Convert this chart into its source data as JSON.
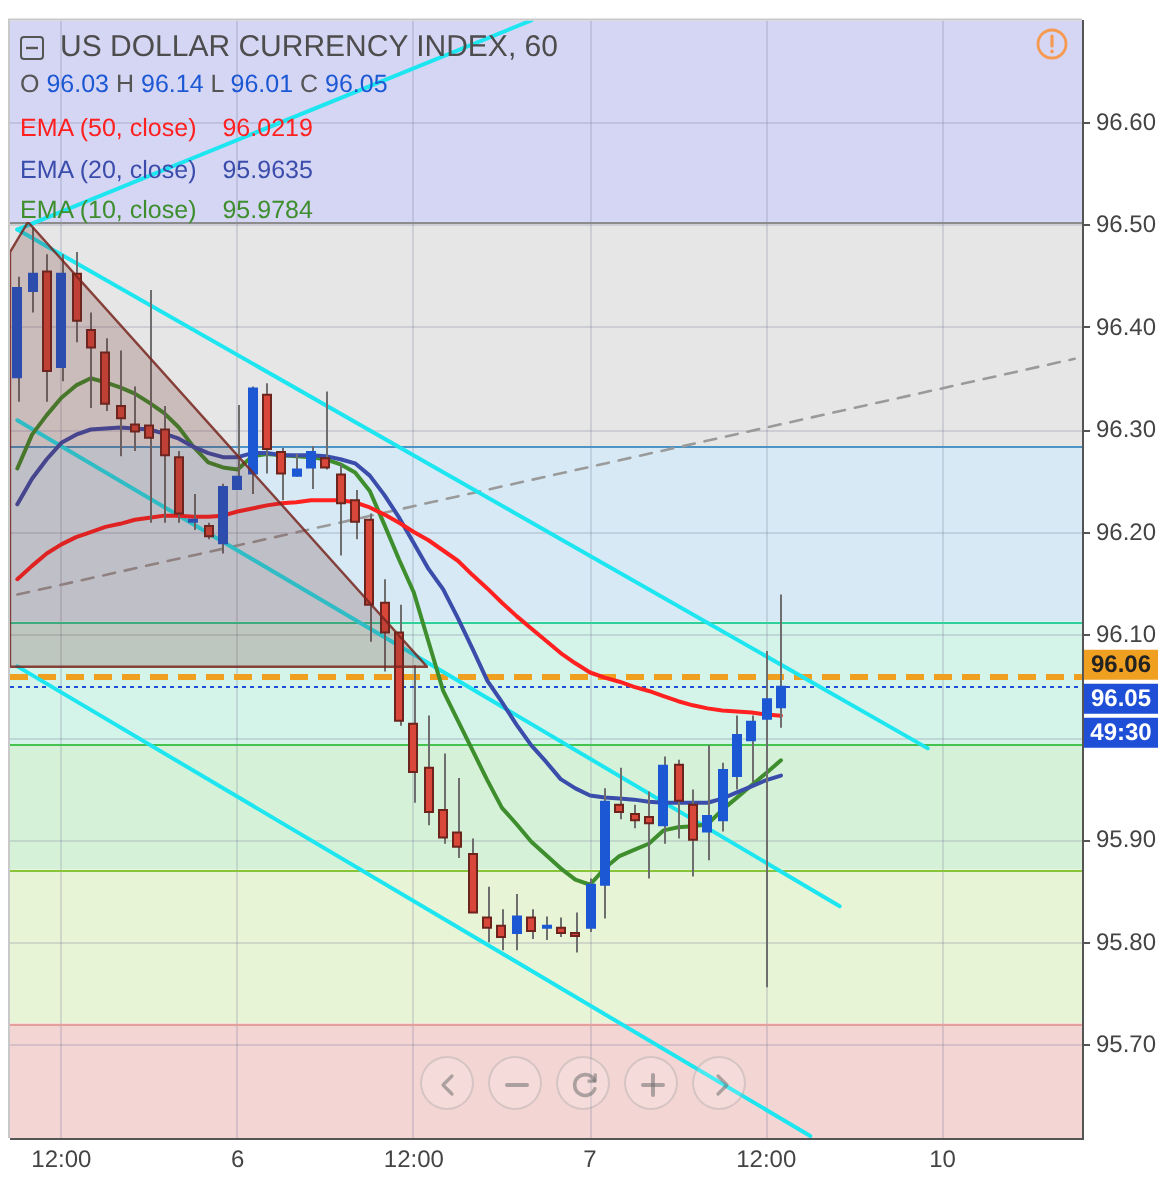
{
  "chart_data": {
    "type": "candlestick",
    "title": "US DOLLAR CURRENCY INDEX, 60",
    "subtitle": "O 96.03 H 96.14 L 96.01 C 96.05",
    "categories": [
      null,
      null,
      null,
      "12:00",
      null,
      null,
      null,
      null,
      null,
      null,
      null,
      null,
      null,
      null,
      null,
      "6",
      null,
      null,
      null,
      null,
      null,
      null,
      null,
      null,
      null,
      null,
      null,
      "12:00",
      null,
      null,
      null,
      null,
      null,
      null,
      null,
      null,
      null,
      null,
      null,
      "7",
      null,
      null,
      null,
      null,
      null,
      null,
      null,
      null,
      null,
      null,
      null,
      "12:00",
      null,
      null,
      null,
      null,
      null,
      null,
      null,
      null,
      null,
      null,
      null,
      "10",
      null,
      null,
      null,
      null,
      null,
      null,
      null,
      null,
      null
    ],
    "ohlc": [
      [
        96.352,
        96.45,
        96.328,
        96.439
      ],
      [
        96.436,
        96.498,
        96.415,
        96.453
      ],
      [
        96.455,
        96.472,
        96.328,
        96.358
      ],
      [
        96.362,
        96.472,
        96.348,
        96.453
      ],
      [
        96.453,
        96.474,
        96.386,
        96.407
      ],
      [
        96.398,
        96.415,
        96.322,
        96.381
      ],
      [
        96.376,
        96.39,
        96.319,
        96.326
      ],
      [
        96.324,
        96.378,
        96.275,
        96.312
      ],
      [
        96.306,
        96.343,
        96.28,
        96.299
      ],
      [
        96.305,
        96.437,
        96.21,
        96.293
      ],
      [
        96.301,
        96.324,
        96.21,
        96.276
      ],
      [
        96.274,
        96.28,
        96.21,
        96.219
      ],
      [
        96.213,
        96.238,
        96.203,
        96.213
      ],
      [
        96.207,
        96.21,
        96.194,
        96.197
      ],
      [
        96.19,
        96.248,
        96.18,
        96.245
      ],
      [
        96.243,
        96.325,
        96.242,
        96.255
      ],
      [
        96.258,
        96.343,
        96.238,
        96.341
      ],
      [
        96.335,
        96.346,
        96.258,
        96.282
      ],
      [
        96.279,
        96.283,
        96.232,
        96.258
      ],
      [
        96.256,
        96.277,
        96.255,
        96.262
      ],
      [
        96.264,
        96.285,
        96.243,
        96.279
      ],
      [
        96.273,
        96.338,
        96.262,
        96.264
      ],
      [
        96.257,
        96.267,
        96.178,
        96.229
      ],
      [
        96.232,
        96.242,
        96.194,
        96.211
      ],
      [
        96.213,
        96.219,
        96.094,
        96.13
      ],
      [
        96.132,
        96.155,
        96.065,
        96.103
      ],
      [
        96.103,
        96.13,
        96.012,
        96.017
      ],
      [
        96.014,
        96.071,
        95.937,
        95.967
      ],
      [
        95.971,
        96.022,
        95.915,
        95.928
      ],
      [
        95.93,
        95.985,
        95.897,
        95.903
      ],
      [
        95.908,
        95.961,
        95.883,
        95.894
      ],
      [
        95.887,
        95.902,
        95.83,
        95.83
      ],
      [
        95.825,
        95.855,
        95.801,
        95.815
      ],
      [
        95.817,
        95.833,
        95.793,
        95.806
      ],
      [
        95.81,
        95.848,
        95.793,
        95.826
      ],
      [
        95.825,
        95.833,
        95.804,
        95.812
      ],
      [
        95.816,
        95.826,
        95.803,
        95.817
      ],
      [
        95.815,
        95.825,
        95.806,
        95.81
      ],
      [
        95.81,
        95.83,
        95.791,
        95.807
      ],
      [
        95.815,
        95.863,
        95.811,
        95.857
      ],
      [
        95.857,
        95.951,
        95.824,
        95.938
      ],
      [
        95.935,
        95.971,
        95.921,
        95.928
      ],
      [
        95.926,
        95.935,
        95.912,
        95.92
      ],
      [
        95.923,
        95.948,
        95.863,
        95.917
      ],
      [
        95.915,
        95.982,
        95.897,
        95.973
      ],
      [
        95.974,
        95.979,
        95.902,
        95.939
      ],
      [
        95.935,
        95.95,
        95.865,
        95.901
      ],
      [
        95.909,
        95.993,
        95.881,
        95.924
      ],
      [
        95.92,
        95.976,
        95.909,
        95.969
      ],
      [
        95.963,
        96.022,
        95.95,
        96.003
      ],
      [
        95.998,
        96.022,
        95.957,
        96.016
      ],
      [
        96.019,
        96.085,
        95.757,
        96.038
      ],
      [
        96.03,
        96.14,
        96.01,
        96.05
      ],
      null,
      null,
      null,
      null,
      null,
      null,
      null,
      null,
      null,
      null,
      null,
      null,
      null,
      null,
      null,
      null,
      null,
      null,
      null,
      null
    ],
    "colors": [
      "#1c58d4",
      "#1c58d4",
      "#d8473a",
      "#1c58d4",
      "#d8473a",
      "#d8473a",
      "#d8473a",
      "#d8473a",
      "#d8473a",
      "#d8473a",
      "#d8473a",
      "#d8473a",
      "#1c58d4",
      "#d8473a",
      "#1c58d4",
      "#1c58d4",
      "#1c58d4",
      "#d8473a",
      "#d8473a",
      "#1c58d4",
      "#1c58d4",
      "#d8473a",
      "#d8473a",
      "#d8473a",
      "#d8473a",
      "#d8473a",
      "#d8473a",
      "#d8473a",
      "#d8473a",
      "#d8473a",
      "#d8473a",
      "#d8473a",
      "#d8473a",
      "#d8473a",
      "#1c58d4",
      "#d8473a",
      "#1c58d4",
      "#d8473a",
      "#d8473a",
      "#1c58d4",
      "#1c58d4",
      "#d8473a",
      "#d8473a",
      "#d8473a",
      "#1c58d4",
      "#d8473a",
      "#d8473a",
      "#1c58d4",
      "#1c58d4",
      "#1c58d4",
      "#1c58d4",
      "#1c58d4",
      "#1c58d4",
      null,
      null,
      null,
      null,
      null,
      null,
      null,
      null,
      null,
      null,
      null,
      null,
      null,
      null,
      null,
      null,
      null,
      null,
      null,
      null
    ],
    "series": [
      {
        "type": "line",
        "name": "EMA (50, close)",
        "color": "#ff2020",
        "values": [
          96.155,
          96.168,
          96.18,
          96.189,
          96.196,
          96.201,
          96.206,
          96.209,
          96.213,
          96.215,
          96.217,
          96.217,
          96.216,
          96.216,
          96.217,
          96.221,
          96.224,
          96.227,
          96.229,
          96.23,
          96.232,
          96.232,
          96.232,
          96.23,
          96.225,
          96.218,
          96.21,
          96.201,
          96.193,
          96.183,
          96.173,
          96.159,
          96.146,
          96.132,
          96.119,
          96.107,
          96.095,
          96.083,
          96.073,
          96.064,
          96.059,
          96.055,
          96.05,
          96.046,
          96.041,
          96.036,
          96.032,
          96.029,
          96.027,
          96.026,
          96.025,
          96.023,
          96.0219,
          null,
          null,
          null,
          null,
          null,
          null,
          null,
          null,
          null,
          null,
          null,
          null,
          null,
          null,
          null,
          null,
          null,
          null,
          null,
          null
        ]
      },
      {
        "type": "line",
        "name": "EMA (20, close)",
        "color": "#3b4dab",
        "values": [
          96.228,
          96.253,
          96.272,
          96.288,
          96.296,
          96.301,
          96.302,
          96.303,
          96.302,
          96.301,
          96.297,
          96.292,
          96.284,
          96.278,
          96.274,
          96.274,
          96.278,
          96.278,
          96.276,
          96.276,
          96.276,
          96.275,
          96.272,
          96.268,
          96.256,
          96.237,
          96.215,
          96.19,
          96.165,
          96.145,
          96.117,
          96.087,
          96.056,
          96.035,
          96.013,
          95.993,
          95.977,
          95.96,
          95.951,
          95.944,
          95.942,
          95.941,
          95.94,
          95.938,
          95.937,
          95.937,
          95.937,
          95.937,
          95.941,
          95.947,
          95.953,
          95.959,
          95.9635,
          null,
          null,
          null,
          null,
          null,
          null,
          null,
          null,
          null,
          null,
          null,
          null,
          null,
          null,
          null,
          null,
          null,
          null,
          null,
          null
        ]
      },
      {
        "type": "line",
        "name": "EMA (10, close)",
        "color": "#3e8e2e",
        "values": [
          96.263,
          96.296,
          96.315,
          96.332,
          96.344,
          96.351,
          96.347,
          96.342,
          96.336,
          96.327,
          96.317,
          96.303,
          96.284,
          96.269,
          96.264,
          96.262,
          96.275,
          96.277,
          96.276,
          96.275,
          96.274,
          96.272,
          96.267,
          96.259,
          96.241,
          96.208,
          96.174,
          96.142,
          96.094,
          96.046,
          96.017,
          95.988,
          95.959,
          95.932,
          95.916,
          95.899,
          95.886,
          95.873,
          95.862,
          95.857,
          95.873,
          95.885,
          95.891,
          95.897,
          95.91,
          95.913,
          95.914,
          95.916,
          95.93,
          95.942,
          95.954,
          95.966,
          95.9784,
          null,
          null,
          null,
          null,
          null,
          null,
          null,
          null,
          null,
          null,
          null,
          null,
          null,
          null,
          null,
          null,
          null,
          null,
          null,
          null
        ]
      },
      {
        "type": "line",
        "color": "#1ee6f0",
        "values": [
          96.496,
          null,
          null,
          null,
          null,
          null,
          null,
          null,
          null,
          null,
          null,
          null,
          null,
          null,
          null,
          null,
          null,
          null,
          null,
          null,
          null,
          null,
          null,
          null,
          null,
          null,
          null,
          null,
          null,
          null,
          null,
          null,
          null,
          null,
          null,
          96.7,
          null,
          null,
          null,
          null,
          null,
          null,
          null,
          null,
          null,
          null,
          null,
          null,
          null,
          null,
          null,
          null,
          null,
          null,
          null,
          null,
          null,
          null,
          null,
          null,
          null,
          null,
          null,
          null,
          null,
          null,
          null,
          null,
          null,
          null,
          null,
          null,
          null
        ]
      },
      {
        "type": "line",
        "color": "#1ee6f0",
        "values": [
          96.496,
          null,
          null,
          null,
          null,
          null,
          null,
          null,
          null,
          null,
          null,
          null,
          null,
          null,
          null,
          null,
          null,
          null,
          null,
          null,
          null,
          null,
          null,
          null,
          null,
          null,
          null,
          null,
          null,
          null,
          null,
          null,
          null,
          null,
          null,
          null,
          null,
          null,
          null,
          null,
          null,
          null,
          null,
          null,
          null,
          null,
          null,
          null,
          null,
          null,
          null,
          null,
          null,
          null,
          null,
          null,
          null,
          null,
          null,
          null,
          null,
          null,
          95.99,
          null,
          null,
          null,
          null,
          null,
          null,
          null,
          null,
          null,
          null
        ]
      },
      {
        "type": "line",
        "color": "#1ee6f0",
        "values": [
          96.31,
          null,
          null,
          null,
          null,
          null,
          null,
          null,
          null,
          null,
          null,
          null,
          null,
          null,
          null,
          null,
          null,
          null,
          null,
          null,
          null,
          null,
          null,
          null,
          null,
          null,
          null,
          null,
          null,
          null,
          null,
          null,
          null,
          null,
          null,
          null,
          null,
          null,
          null,
          null,
          null,
          null,
          null,
          null,
          null,
          null,
          null,
          null,
          null,
          null,
          null,
          null,
          null,
          null,
          null,
          null,
          95.836,
          null,
          null,
          null,
          null,
          null,
          null,
          null,
          null,
          null,
          null,
          null,
          null,
          null,
          null,
          null,
          null
        ]
      },
      {
        "type": "line",
        "color": "#1ee6f0",
        "values": [
          96.07,
          null,
          null,
          null,
          null,
          null,
          null,
          null,
          null,
          null,
          null,
          null,
          null,
          null,
          null,
          null,
          null,
          null,
          null,
          null,
          null,
          null,
          null,
          null,
          null,
          null,
          null,
          null,
          null,
          null,
          null,
          null,
          null,
          null,
          null,
          null,
          null,
          null,
          null,
          null,
          null,
          null,
          null,
          null,
          null,
          null,
          null,
          null,
          null,
          null,
          null,
          null,
          null,
          null,
          95.612,
          null,
          null,
          null,
          null,
          null,
          null,
          null,
          null,
          null,
          null,
          null,
          null,
          null,
          null,
          null,
          null,
          null,
          null
        ]
      },
      {
        "type": "line",
        "color": "#9a9a9a",
        "line_style": "dashed",
        "values": [
          96.14,
          null,
          null,
          null,
          null,
          null,
          null,
          null,
          null,
          null,
          null,
          null,
          null,
          null,
          null,
          null,
          null,
          null,
          null,
          null,
          null,
          null,
          null,
          null,
          null,
          null,
          null,
          null,
          null,
          null,
          null,
          null,
          null,
          null,
          null,
          null,
          null,
          null,
          null,
          null,
          null,
          null,
          null,
          null,
          null,
          null,
          null,
          null,
          null,
          null,
          null,
          null,
          null,
          null,
          null,
          null,
          null,
          null,
          null,
          null,
          null,
          null,
          null,
          null,
          null,
          null,
          null,
          null,
          null,
          null,
          null,
          null,
          96.37
        ]
      }
    ],
    "bands": [
      {
        "axis": "y",
        "from": 96.503,
        "to": 96.7,
        "color": "#d5d5f4"
      },
      {
        "axis": "y",
        "from": 96.285,
        "to": 96.503,
        "color": "#e6e6e6"
      },
      {
        "axis": "y",
        "from": 96.114,
        "to": 96.285,
        "color": "#d6e9f4"
      },
      {
        "axis": "y",
        "from": 95.994,
        "to": 96.114,
        "color": "#d4f4ea"
      },
      {
        "axis": "y",
        "from": 95.872,
        "to": 95.994,
        "color": "#d5f2d8"
      },
      {
        "axis": "y",
        "from": 95.722,
        "to": 95.872,
        "color": "#e8f4d6"
      },
      {
        "axis": "y",
        "from": 95.61,
        "to": 95.722,
        "color": "#f3d5d3"
      }
    ],
    "ref_lines": [
      {
        "axis": "y",
        "value": 96.503,
        "color": "#8c8c8c"
      },
      {
        "axis": "y",
        "value": 96.285,
        "color": "#4d94c4"
      },
      {
        "axis": "y",
        "value": 96.114,
        "color": "#2fd09c"
      },
      {
        "axis": "y",
        "value": 95.994,
        "color": "#45c24f"
      },
      {
        "axis": "y",
        "value": 95.872,
        "color": "#86c43a"
      },
      {
        "axis": "y",
        "value": 95.722,
        "color": "#e3a09c"
      },
      {
        "axis": "y",
        "value": 96.06,
        "label": "96.06",
        "color": "#f0a020",
        "line_style": "dashed"
      },
      {
        "axis": "y",
        "value": 96.05,
        "label": "96.05",
        "color": "#1e4fd6",
        "line_style": "dotted"
      }
    ],
    "annotations": [
      "96.0219",
      "95.9635",
      "95.9784",
      "49:30"
    ],
    "ylim": [
      95.61,
      96.7
    ],
    "yticks": [
      {
        "value": 95.7,
        "label": "95.70"
      },
      {
        "value": 95.8,
        "label": "95.80"
      },
      {
        "value": 95.9,
        "label": "95.90"
      },
      {
        "value": 96,
        "label": null
      },
      {
        "value": 96.1,
        "label": "96.10"
      },
      {
        "value": 96.2,
        "label": "96.20"
      },
      {
        "value": 96.3,
        "label": "96.30"
      },
      {
        "value": 96.4,
        "label": "96.40"
      },
      {
        "value": 96.5,
        "label": "96.50"
      },
      {
        "value": 96.6,
        "label": "96.60"
      }
    ],
    "grid": true,
    "legend": "top left"
  }
}
